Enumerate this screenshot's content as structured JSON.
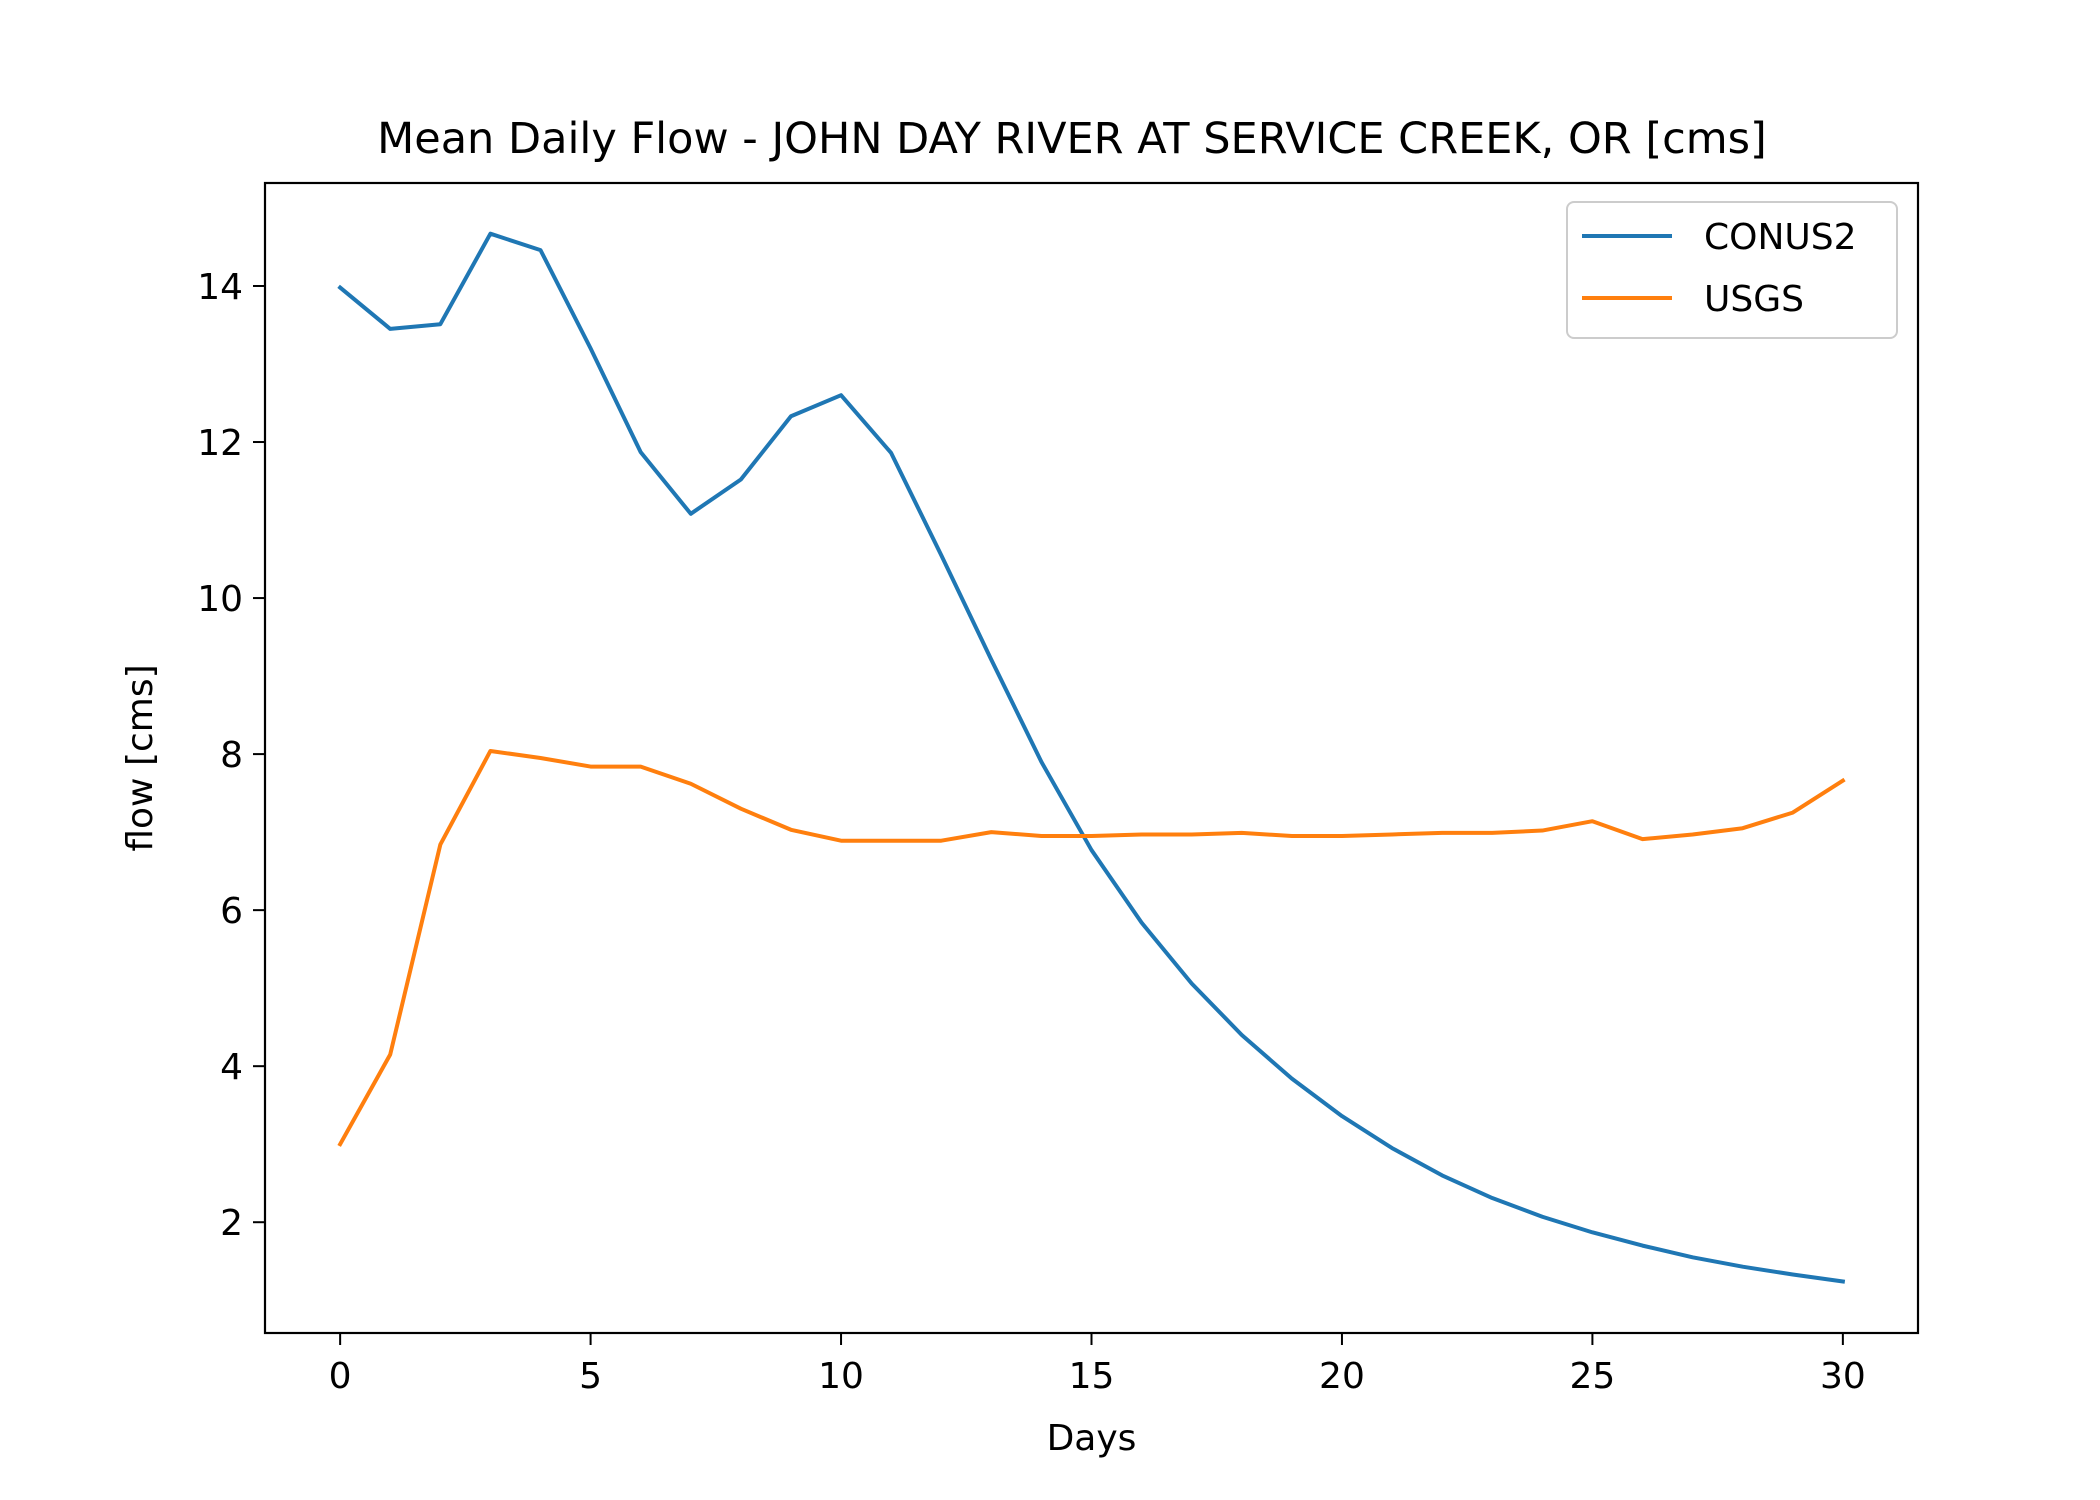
{
  "chart_data": {
    "type": "line",
    "title": "Mean Daily Flow - JOHN DAY RIVER AT SERVICE CREEK, OR [cms]",
    "xlabel": "Days",
    "ylabel": "flow [cms]",
    "xlim": [
      -1.5,
      31.5
    ],
    "ylim": [
      0.58,
      15.32
    ],
    "xticks": [
      0,
      5,
      10,
      15,
      20,
      25,
      30
    ],
    "yticks": [
      2,
      4,
      6,
      8,
      10,
      12,
      14
    ],
    "grid": false,
    "legend_position": "top-right",
    "x": [
      0,
      1,
      2,
      3,
      4,
      5,
      6,
      7,
      8,
      9,
      10,
      11,
      12,
      13,
      14,
      15,
      16,
      17,
      18,
      19,
      20,
      21,
      22,
      23,
      24,
      25,
      26,
      27,
      28,
      29,
      30
    ],
    "series": [
      {
        "name": "CONUS2",
        "color": "#1f77b4",
        "values": [
          13.98,
          13.45,
          13.51,
          14.67,
          14.46,
          13.2,
          11.87,
          11.08,
          11.52,
          12.33,
          12.6,
          11.86,
          10.55,
          9.21,
          7.9,
          6.77,
          5.84,
          5.06,
          4.4,
          3.84,
          3.36,
          2.95,
          2.6,
          2.31,
          2.07,
          1.87,
          1.7,
          1.55,
          1.43,
          1.33,
          1.24
        ]
      },
      {
        "name": "USGS",
        "color": "#ff7f0e",
        "values": [
          3.0,
          4.15,
          6.84,
          8.04,
          7.95,
          7.84,
          7.84,
          7.62,
          7.3,
          7.03,
          6.89,
          6.89,
          6.89,
          7.0,
          6.95,
          6.95,
          6.97,
          6.97,
          6.99,
          6.95,
          6.95,
          6.97,
          6.99,
          6.99,
          7.02,
          7.14,
          6.91,
          6.97,
          7.05,
          7.25,
          7.66
        ]
      }
    ]
  }
}
